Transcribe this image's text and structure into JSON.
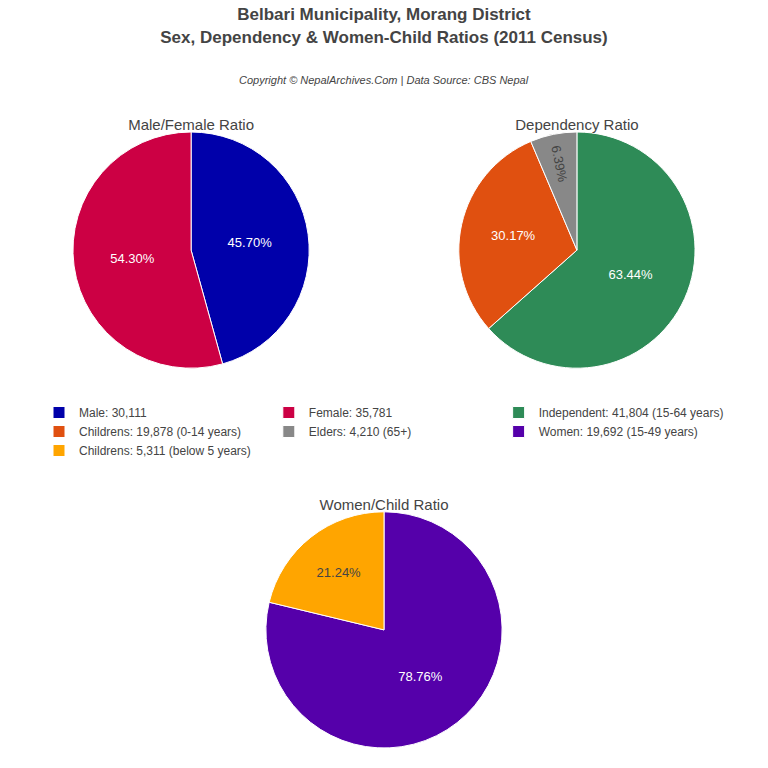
{
  "title": "Belbari Municipality, Morang District\nSex, Dependency & Women-Child Ratios (2011 Census)",
  "subtitle": "Copyright © NepalArchives.Com | Data Source: CBS Nepal",
  "chart_data": [
    {
      "type": "pie",
      "title": "Male/Female Ratio",
      "categories": [
        "Male: 30,111",
        "Female: 35,781"
      ],
      "values": [
        45.7,
        54.3
      ],
      "value_labels": [
        "45.70%",
        "54.30%"
      ],
      "colors": [
        "#0000AA",
        "#CC0044"
      ],
      "data_labels": true
    },
    {
      "type": "pie",
      "title": "Dependency Ratio",
      "categories": [
        "Independent: 41,804 (15-64 years)",
        "Childrens: 19,878 (0-14 years)",
        "Elders: 4,210 (65+)"
      ],
      "values": [
        63.44,
        30.17,
        6.39
      ],
      "value_labels": [
        "63.44%",
        "30.17%",
        "6.39%"
      ],
      "colors": [
        "#2E8B57",
        "#E05010",
        "#888888"
      ],
      "data_labels": true
    },
    {
      "type": "pie",
      "title": "Women/Child Ratio",
      "categories": [
        "Women: 19,692 (15-49 years)",
        "Childrens: 5,311 (below 5 years)"
      ],
      "values": [
        78.76,
        21.24
      ],
      "value_labels": [
        "78.76%",
        "21.24%"
      ],
      "colors": [
        "#5500AA",
        "#FFA500"
      ],
      "data_labels": true
    }
  ]
}
